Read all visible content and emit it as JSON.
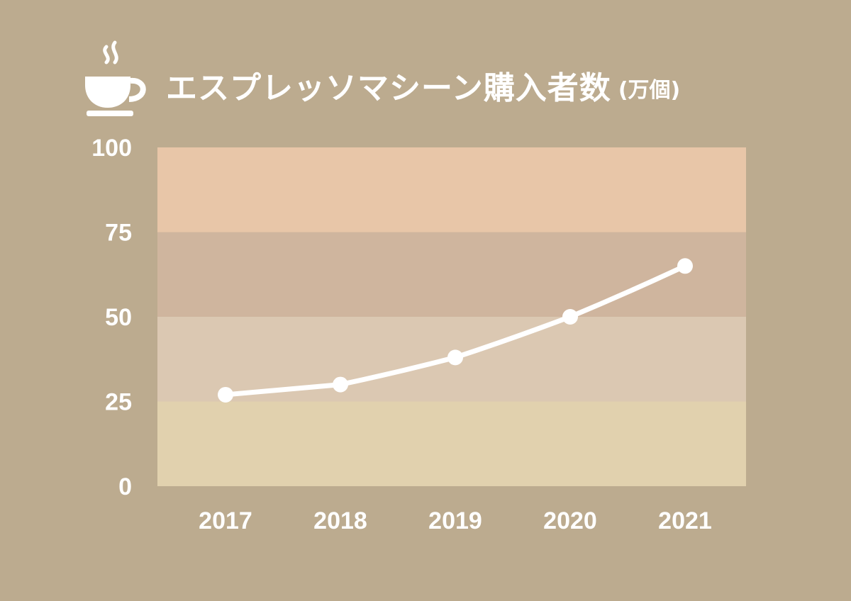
{
  "header": {
    "title": "エスプレッソマシーン購入者数",
    "unit": "(万個)",
    "icon": "coffee-cup-icon"
  },
  "colors": {
    "background": "#bcab8f",
    "bands": [
      "#e1d1ae",
      "#dbc8b2",
      "#cfb59e",
      "#e8c6a8"
    ],
    "line": "#ffffff",
    "text": "#ffffff"
  },
  "chart_data": {
    "type": "line",
    "categories": [
      "2017",
      "2018",
      "2019",
      "2020",
      "2021"
    ],
    "series": [
      {
        "values": [
          27,
          30,
          38,
          50,
          65
        ]
      }
    ],
    "ylim": [
      0,
      100
    ],
    "yticks": [
      "0",
      "25",
      "50",
      "75",
      "100"
    ],
    "grid": false,
    "bands": [
      [
        0,
        25
      ],
      [
        25,
        50
      ],
      [
        50,
        75
      ],
      [
        75,
        100
      ]
    ]
  }
}
